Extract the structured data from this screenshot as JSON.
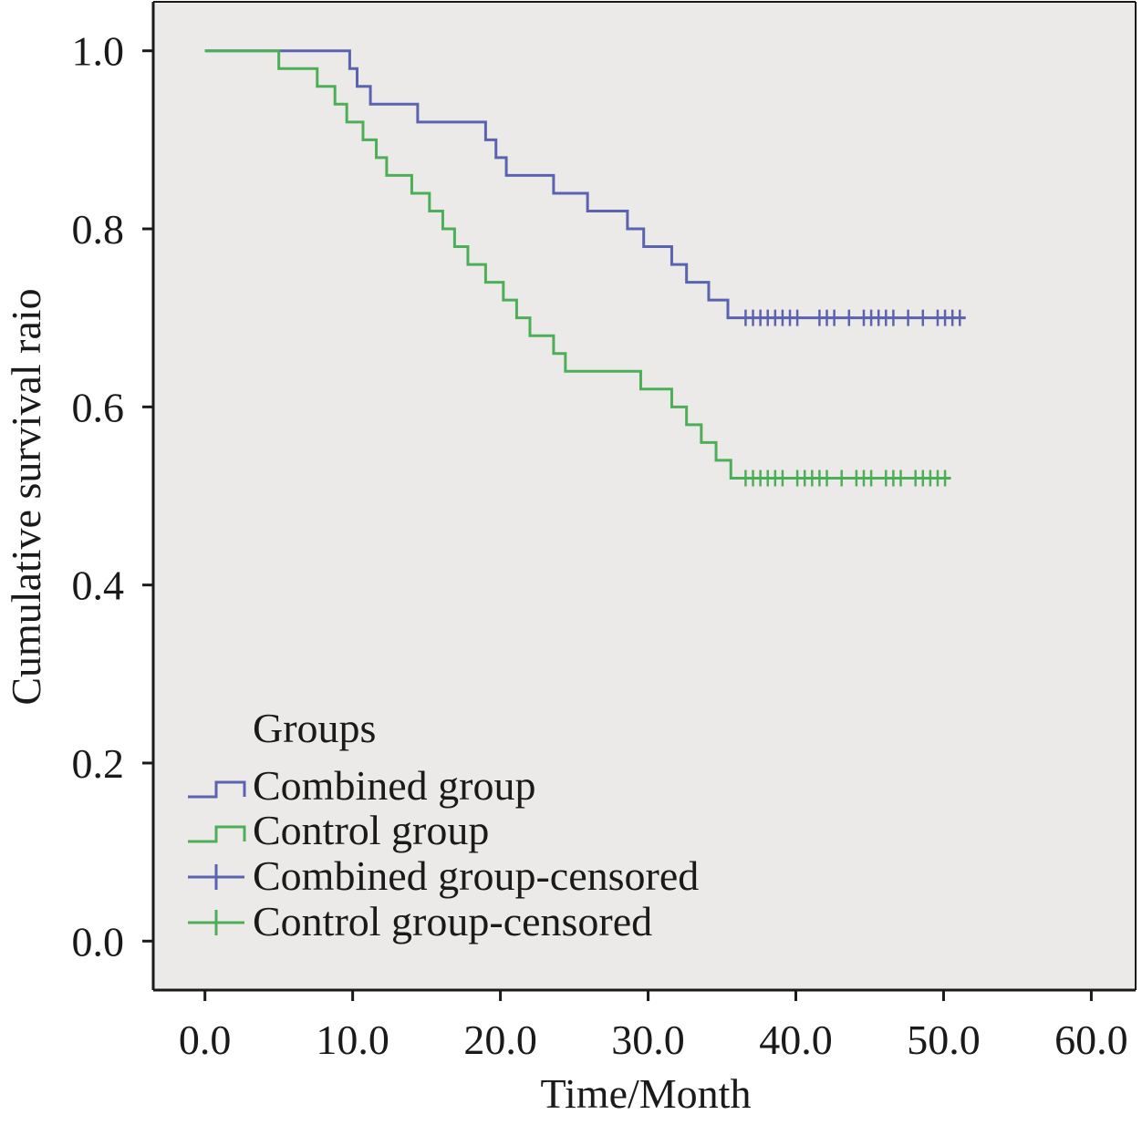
{
  "chart_data": {
    "type": "line",
    "title": "",
    "xlabel": "Time/Month",
    "ylabel": "Cumulative survival raio",
    "xlim": [
      -3.5,
      63.0
    ],
    "ylim": [
      -0.055,
      1.055
    ],
    "xticks": [
      0,
      10,
      20,
      30,
      40,
      50,
      60
    ],
    "xtick_labels": [
      "0.0",
      "10.0",
      "20.0",
      "30.0",
      "40.0",
      "50.0",
      "60.0"
    ],
    "yticks": [
      0,
      0.2,
      0.4,
      0.6,
      0.8,
      1.0
    ],
    "ytick_labels": [
      "0.0",
      "0.2",
      "0.4",
      "0.6",
      "0.8",
      "1.0"
    ],
    "grid": false,
    "legend": {
      "title": "Groups",
      "placement": "bottom-left",
      "entries": [
        "Combined group",
        "Control group",
        "Combined group-censored",
        "Control group-censored"
      ]
    },
    "colors": {
      "plot_background": "#ebeae9",
      "combined": "#5b63b0",
      "control": "#4caf58",
      "axis": "#1a1a1a"
    },
    "series": [
      {
        "name": "Combined group",
        "step": true,
        "x": [
          0,
          9.8,
          10.3,
          11.2,
          14.4,
          19.0,
          19.7,
          20.4,
          23.6,
          25.9,
          28.6,
          29.7,
          31.6,
          32.6,
          34.1,
          35.4,
          36.1
        ],
        "y": [
          1.0,
          0.98,
          0.96,
          0.94,
          0.92,
          0.9,
          0.88,
          0.86,
          0.84,
          0.82,
          0.8,
          0.78,
          0.76,
          0.74,
          0.72,
          0.7,
          0.7
        ],
        "end_x": 51.5
      },
      {
        "name": "Control group",
        "step": true,
        "x": [
          0,
          5.0,
          7.6,
          8.8,
          9.6,
          10.7,
          11.6,
          12.3,
          14.0,
          15.2,
          16.1,
          16.9,
          17.8,
          19.0,
          20.2,
          21.1,
          22.0,
          23.6,
          24.4,
          25.1,
          29.5,
          31.6,
          32.6,
          33.6,
          34.6,
          35.6
        ],
        "y": [
          1.0,
          0.98,
          0.96,
          0.94,
          0.92,
          0.9,
          0.88,
          0.86,
          0.84,
          0.82,
          0.8,
          0.78,
          0.76,
          0.74,
          0.72,
          0.7,
          0.68,
          0.66,
          0.64,
          0.64,
          0.62,
          0.6,
          0.58,
          0.56,
          0.54,
          0.52
        ],
        "end_x": 50.5
      },
      {
        "name": "Combined group-censored",
        "marker": "+",
        "x": [
          36.6,
          37.1,
          37.6,
          38.1,
          38.6,
          39.1,
          39.6,
          40.1,
          41.6,
          42.1,
          42.6,
          43.6,
          44.6,
          45.1,
          45.6,
          46.1,
          46.6,
          47.6,
          48.6,
          49.6,
          50.1,
          50.6,
          51.1
        ],
        "y": 0.7
      },
      {
        "name": "Control group-censored",
        "marker": "+",
        "x": [
          36.6,
          37.1,
          37.6,
          38.1,
          38.6,
          39.1,
          40.1,
          40.6,
          41.1,
          41.6,
          42.1,
          43.1,
          44.1,
          44.6,
          45.1,
          46.1,
          46.6,
          47.1,
          48.1,
          48.6,
          49.1,
          49.6,
          50.1
        ],
        "y": 0.52
      }
    ]
  }
}
